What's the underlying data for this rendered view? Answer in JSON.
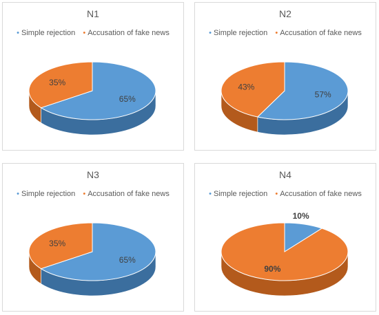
{
  "colors": {
    "simple": "#5b9bd5",
    "simple_side": "#3b6e9e",
    "fake": "#ed7d31",
    "fake_side": "#b35a1c"
  },
  "chart_data": [
    {
      "type": "pie",
      "title": "N1",
      "legend": [
        "Simple rejection",
        "Accusation of fake news"
      ],
      "legend_position": "top",
      "values": [
        65,
        35
      ],
      "labels": [
        "65%",
        "35%"
      ],
      "bold_labels": [
        false,
        false
      ]
    },
    {
      "type": "pie",
      "title": "N2",
      "legend": [
        "Simple rejection",
        "Accusation of fake news"
      ],
      "legend_position": "top",
      "values": [
        57,
        43
      ],
      "labels": [
        "57%",
        "43%"
      ],
      "bold_labels": [
        false,
        false
      ]
    },
    {
      "type": "pie",
      "title": "N3",
      "legend": [
        "Simple rejection",
        "Accusation of fake news"
      ],
      "legend_position": "top",
      "values": [
        65,
        35
      ],
      "labels": [
        "65%",
        "35%"
      ],
      "bold_labels": [
        false,
        false
      ]
    },
    {
      "type": "pie",
      "title": "N4",
      "legend": [
        "Simple rejection",
        "Accusation of fake news"
      ],
      "legend_position": "top",
      "values": [
        10,
        90
      ],
      "labels": [
        "10%",
        "90%"
      ],
      "bold_labels": [
        true,
        true
      ]
    }
  ]
}
